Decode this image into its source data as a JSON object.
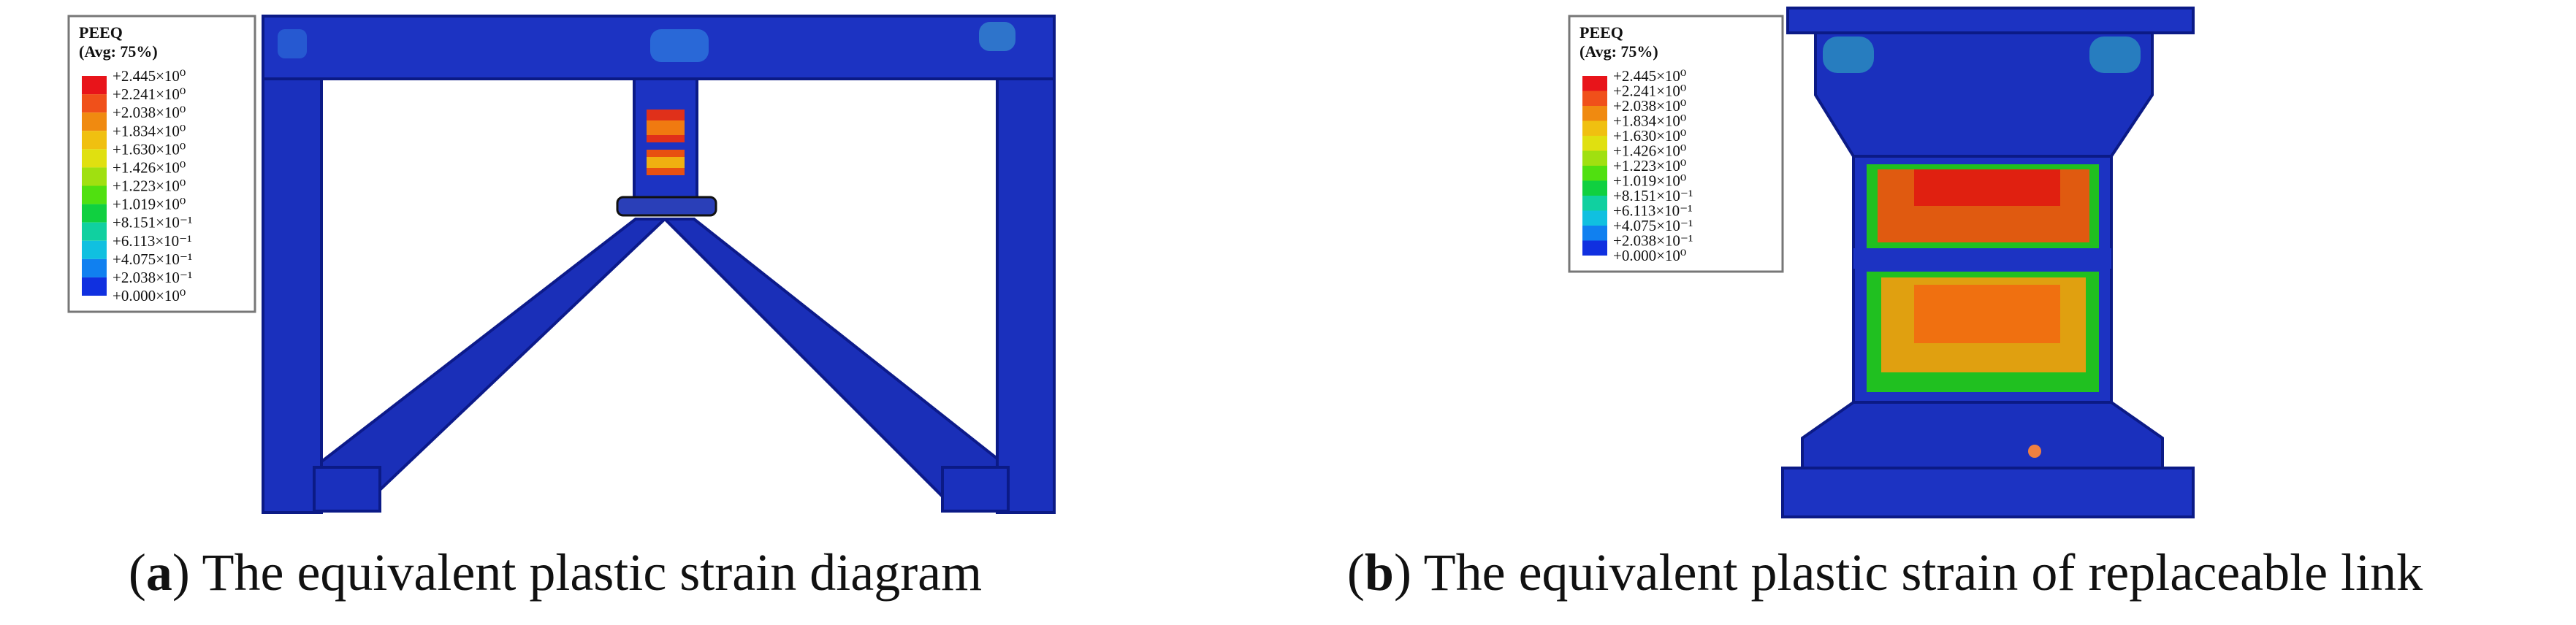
{
  "panels": [
    {
      "legend": {
        "title": "PEEQ",
        "subtitle": "(Avg: 75%)",
        "labels": [
          "+2.445×10⁰",
          "+2.241×10⁰",
          "+2.038×10⁰",
          "+1.834×10⁰",
          "+1.630×10⁰",
          "+1.426×10⁰",
          "+1.223×10⁰",
          "+1.019×10⁰",
          "+8.151×10⁻¹",
          "+6.113×10⁻¹",
          "+4.075×10⁻¹",
          "+2.038×10⁻¹",
          "+0.000×10⁰"
        ]
      },
      "caption": {
        "open": "(",
        "letter": "a",
        "rest": ") The equivalent plastic strain diagram"
      }
    },
    {
      "legend": {
        "title": "PEEQ",
        "subtitle": "(Avg: 75%)",
        "labels": [
          "+2.445×10⁰",
          "+2.241×10⁰",
          "+2.038×10⁰",
          "+1.834×10⁰",
          "+1.630×10⁰",
          "+1.426×10⁰",
          "+1.223×10⁰",
          "+1.019×10⁰",
          "+8.151×10⁻¹",
          "+6.113×10⁻¹",
          "+4.075×10⁻¹",
          "+2.038×10⁻¹",
          "+0.000×10⁰"
        ]
      },
      "caption": {
        "open": "(",
        "letter": "b",
        "rest": ") The equivalent plastic strain of replaceable link"
      }
    }
  ]
}
